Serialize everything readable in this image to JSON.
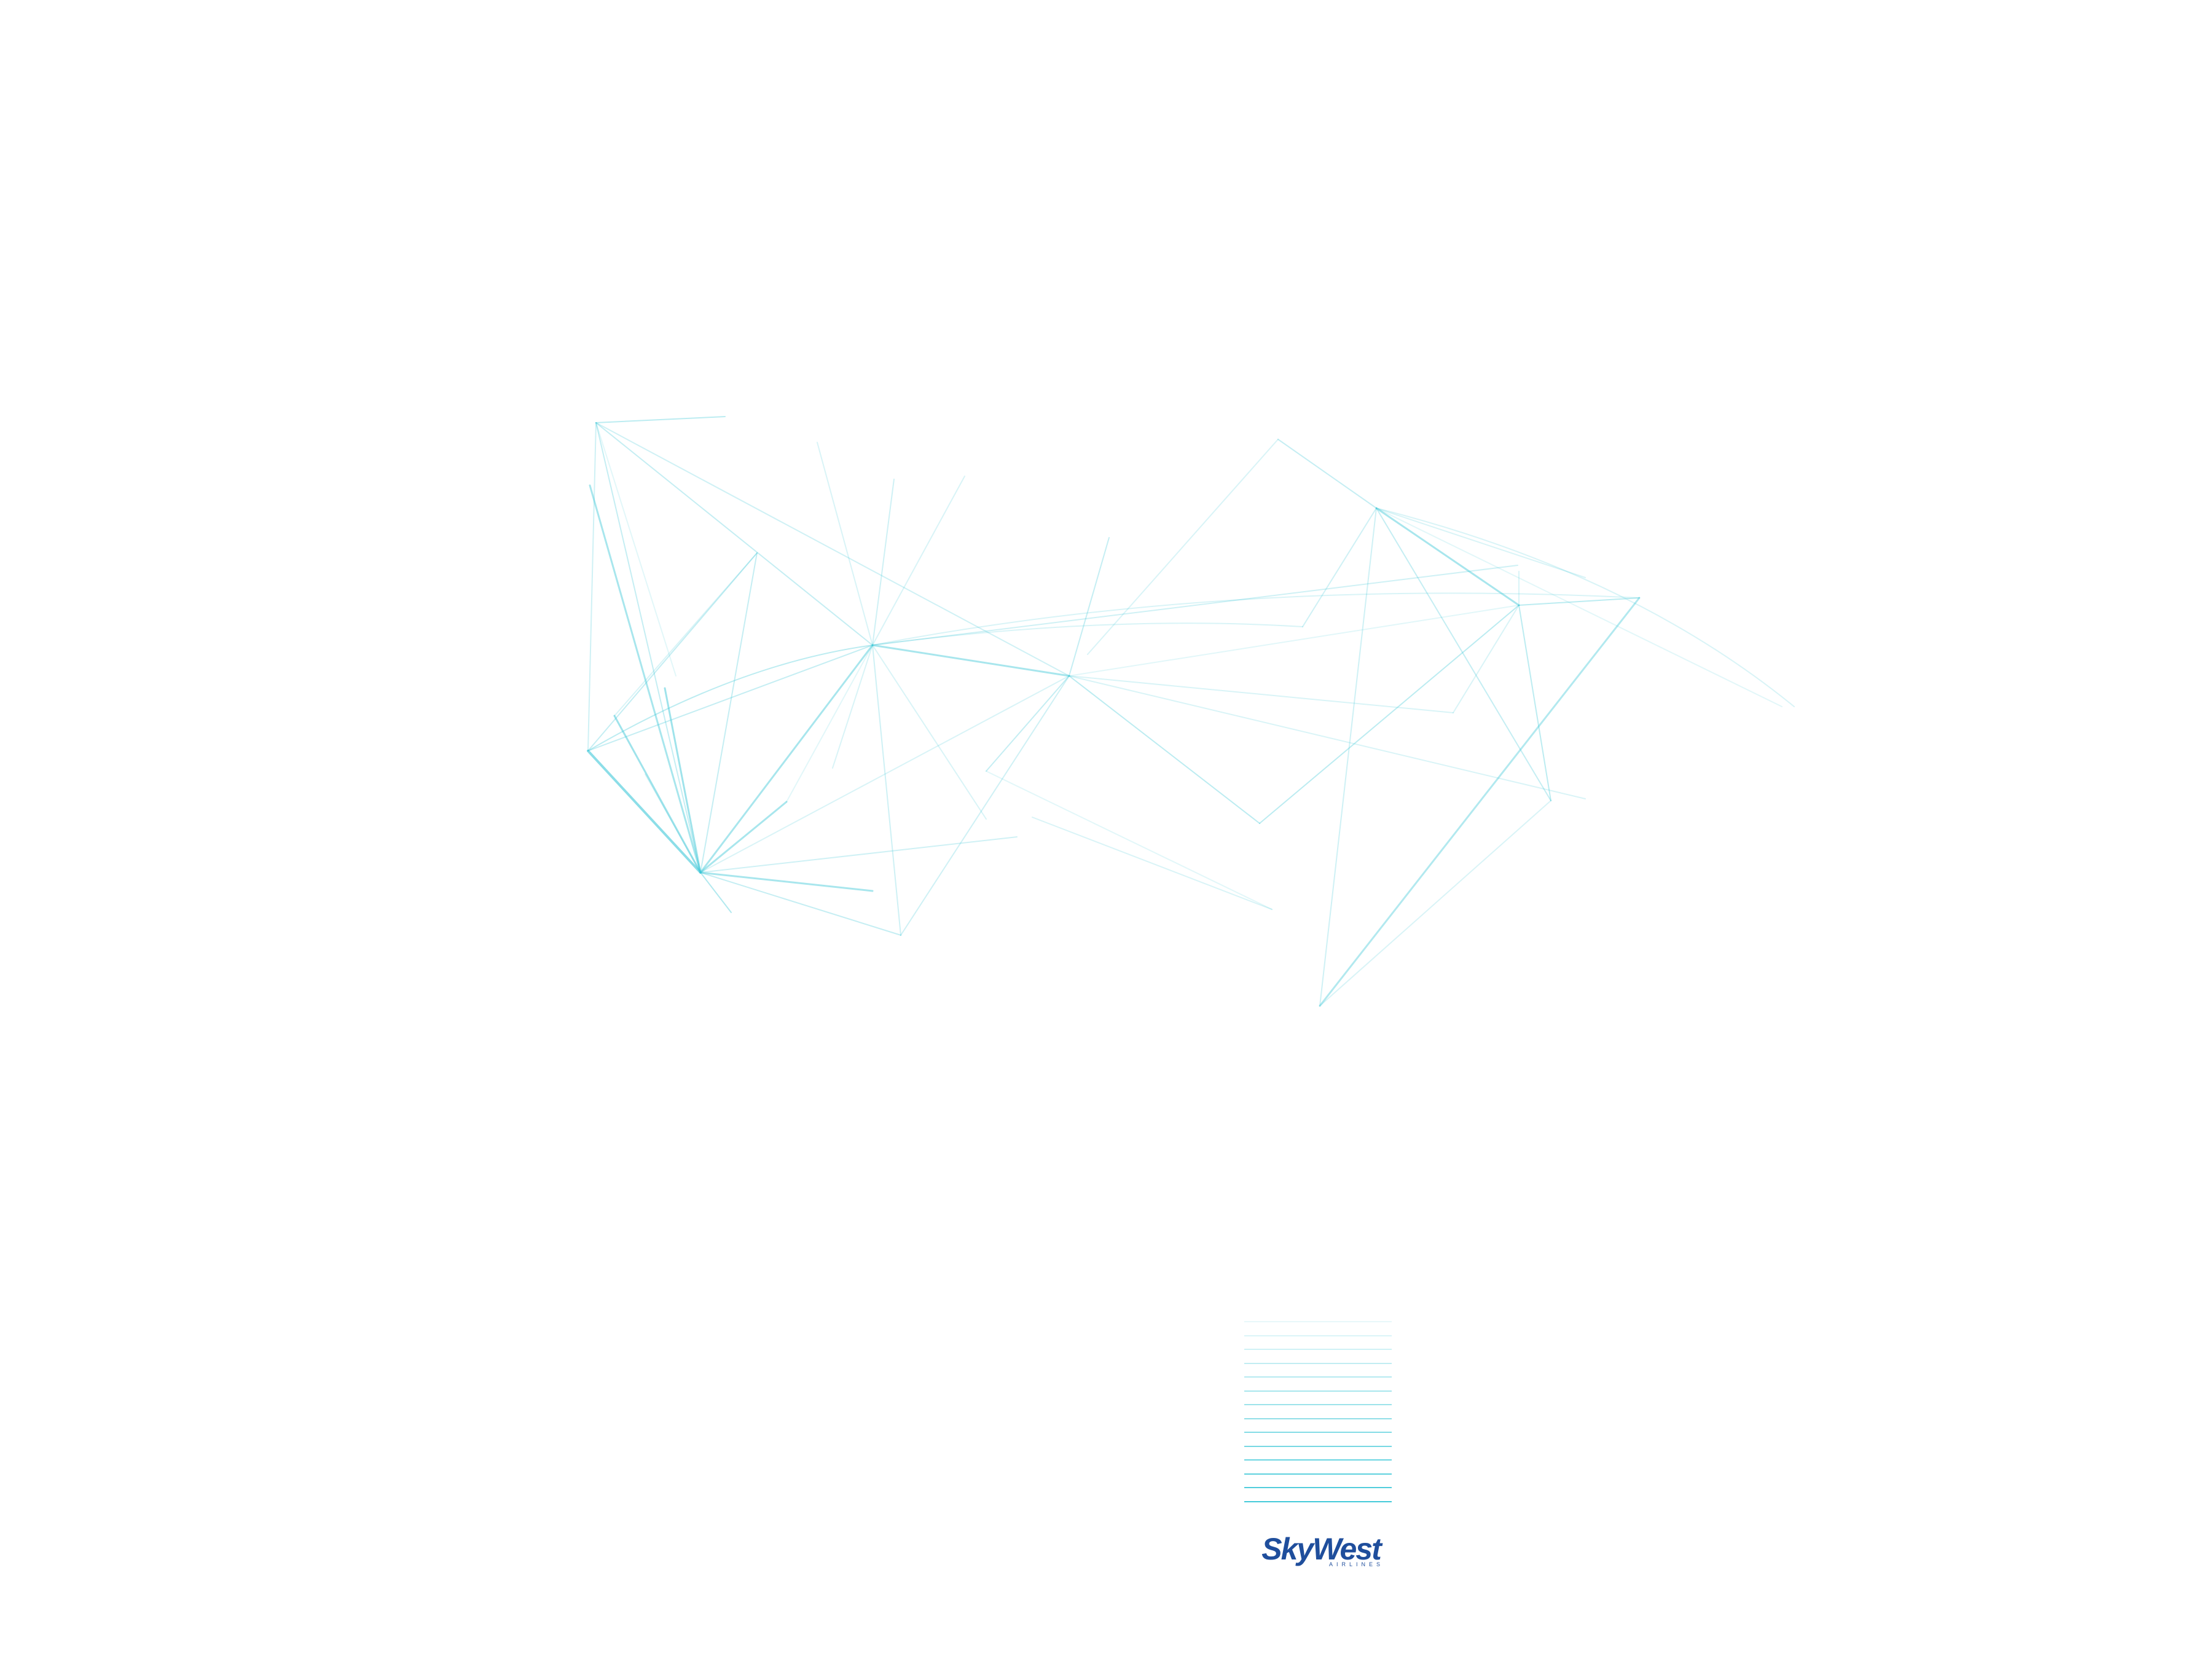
{
  "page": {
    "background": "#ffffff"
  },
  "route_map": {
    "line_color": "#3fc8d8",
    "description_icon": "route-network-map"
  },
  "legend": {
    "line_color": "#3fc8d8"
  },
  "logo": {
    "text": "SkyWest",
    "subtext": "AIRLINES",
    "color": "#1f4e9c"
  }
}
